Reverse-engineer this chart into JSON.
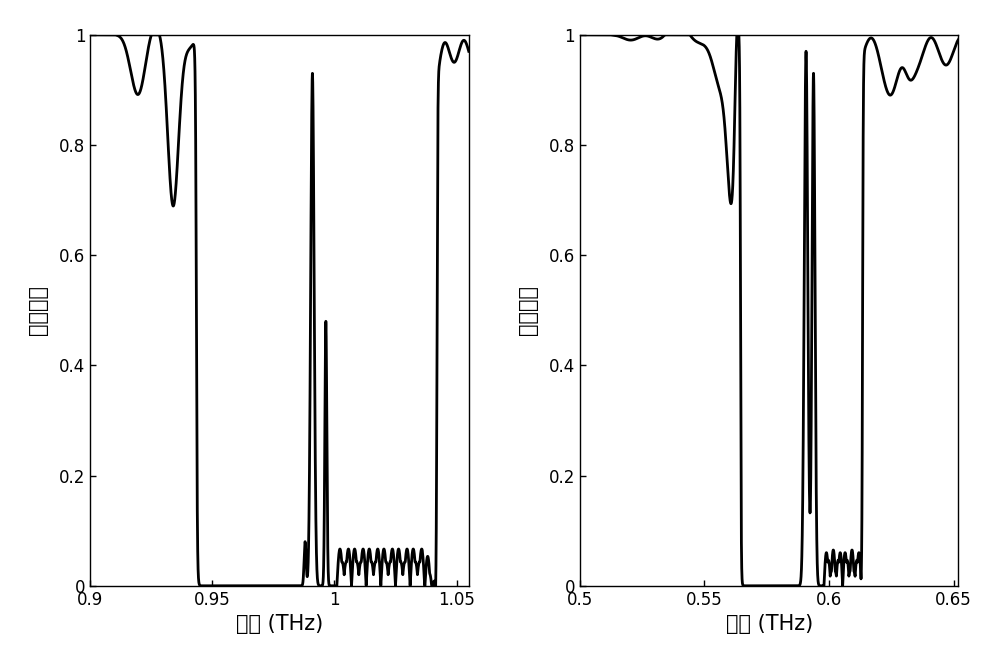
{
  "plot1": {
    "xmin": 0.9,
    "xmax": 1.055,
    "xticks": [
      0.9,
      0.95,
      1.0,
      1.05
    ],
    "xticklabels": [
      "0.9",
      "0.95",
      "1",
      "1.05"
    ],
    "xlabel": "频率 (THz)",
    "ylabel": "透射系数",
    "ylim": [
      0,
      1.0
    ],
    "yticks": [
      0,
      0.2,
      0.4,
      0.6,
      0.8,
      1.0
    ],
    "yticklabels": [
      "0",
      "0.2",
      "0.4",
      "0.6",
      "0.8",
      "1"
    ]
  },
  "plot2": {
    "xmin": 0.5,
    "xmax": 0.652,
    "xticks": [
      0.5,
      0.55,
      0.6,
      0.65
    ],
    "xticklabels": [
      "0.5",
      "0.55",
      "0.6",
      "0.65"
    ],
    "xlabel": "频率 (THz)",
    "ylabel": "透射系数",
    "ylim": [
      0,
      1.0
    ],
    "yticks": [
      0,
      0.2,
      0.4,
      0.6,
      0.8,
      1.0
    ],
    "yticklabels": [
      "0",
      "0.2",
      "0.4",
      "0.6",
      "0.8",
      "1"
    ]
  },
  "line_color": "#000000",
  "line_width": 2.0,
  "bg_color": "#ffffff",
  "tick_fontsize": 12,
  "label_fontsize": 15
}
